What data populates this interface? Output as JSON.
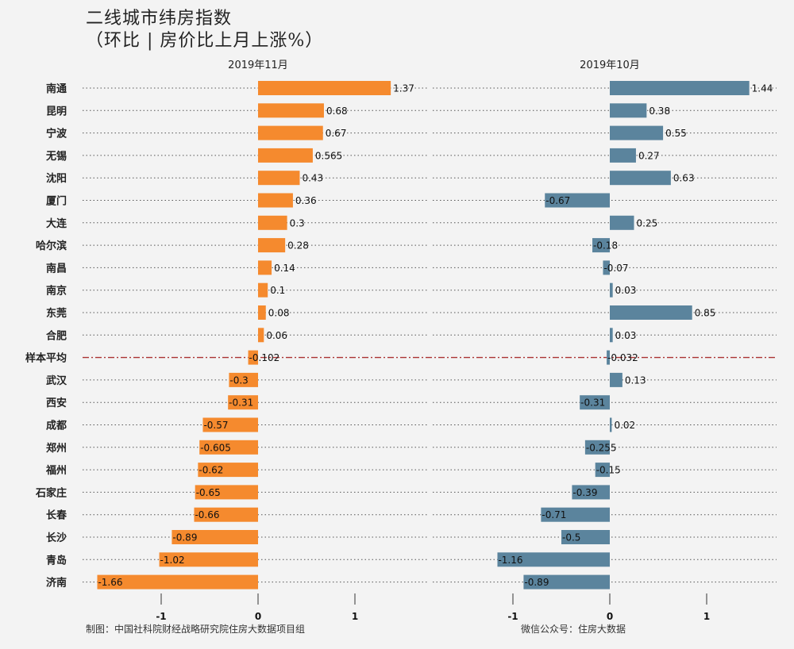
{
  "title_line1": "二线城市纬房指数",
  "title_line2": "（环比 | 房价比上月上涨%）",
  "footer_left": "制图：中国社科院财经战略研究院住房大数据项目组",
  "footer_right": "微信公众号：住房大数据",
  "colors": {
    "nov_bar": "#f58a2e",
    "oct_bar": "#5b849d",
    "average_line": "#a33333",
    "background": "#f3f3f3"
  },
  "chart_data": [
    {
      "type": "bar",
      "orientation": "horizontal",
      "title": "2019年11月",
      "categories": [
        "南通",
        "昆明",
        "宁波",
        "无锡",
        "沈阳",
        "厦门",
        "大连",
        "哈尔滨",
        "南昌",
        "南京",
        "东莞",
        "合肥",
        "样本平均",
        "武汉",
        "西安",
        "成都",
        "郑州",
        "福州",
        "石家庄",
        "长春",
        "长沙",
        "青岛",
        "济南"
      ],
      "values": [
        1.37,
        0.68,
        0.67,
        0.565,
        0.43,
        0.36,
        0.3,
        0.28,
        0.14,
        0.1,
        0.08,
        0.06,
        -0.102,
        -0.3,
        -0.31,
        -0.57,
        -0.605,
        -0.62,
        -0.65,
        -0.66,
        -0.89,
        -1.02,
        -1.66
      ],
      "value_labels": [
        "1.37",
        "0.68",
        "0.67",
        "0.565",
        "0.43",
        "0.36",
        "0.3",
        "0.28",
        "0.14",
        "0.1",
        "0.08",
        "0.06",
        "-0.102",
        "-0.3",
        "-0.31",
        "-0.57",
        "-0.605",
        "-0.62",
        "-0.65",
        "-0.66",
        "-0.89",
        "-1.02",
        "-1.66"
      ],
      "xticks": [
        -1,
        0,
        1
      ],
      "xlim": [
        -1.8,
        1.5
      ],
      "highlight_category": "样本平均"
    },
    {
      "type": "bar",
      "orientation": "horizontal",
      "title": "2019年10月",
      "categories": [
        "南通",
        "昆明",
        "宁波",
        "无锡",
        "沈阳",
        "厦门",
        "大连",
        "哈尔滨",
        "南昌",
        "南京",
        "东莞",
        "合肥",
        "样本平均",
        "武汉",
        "西安",
        "成都",
        "郑州",
        "福州",
        "石家庄",
        "长春",
        "长沙",
        "青岛",
        "济南"
      ],
      "values": [
        1.44,
        0.38,
        0.55,
        0.27,
        0.63,
        -0.67,
        0.25,
        -0.18,
        -0.07,
        0.03,
        0.85,
        0.03,
        -0.032,
        0.13,
        -0.31,
        0.02,
        -0.255,
        -0.15,
        -0.39,
        -0.71,
        -0.5,
        -1.16,
        -0.89
      ],
      "value_labels": [
        "1.44",
        "0.38",
        "0.55",
        "0.27",
        "0.63",
        "-0.67",
        "0.25",
        "-0.18",
        "-0.07",
        "0.03",
        "0.85",
        "0.03",
        "-0.032",
        "0.13",
        "-0.31",
        "0.02",
        "-0.255",
        "-0.15",
        "-0.39",
        "-0.71",
        "-0.5",
        "-1.16",
        "-0.89"
      ],
      "xticks": [
        -1,
        0,
        1
      ],
      "xlim": [
        -1.3,
        1.7
      ],
      "highlight_category": "样本平均"
    }
  ]
}
